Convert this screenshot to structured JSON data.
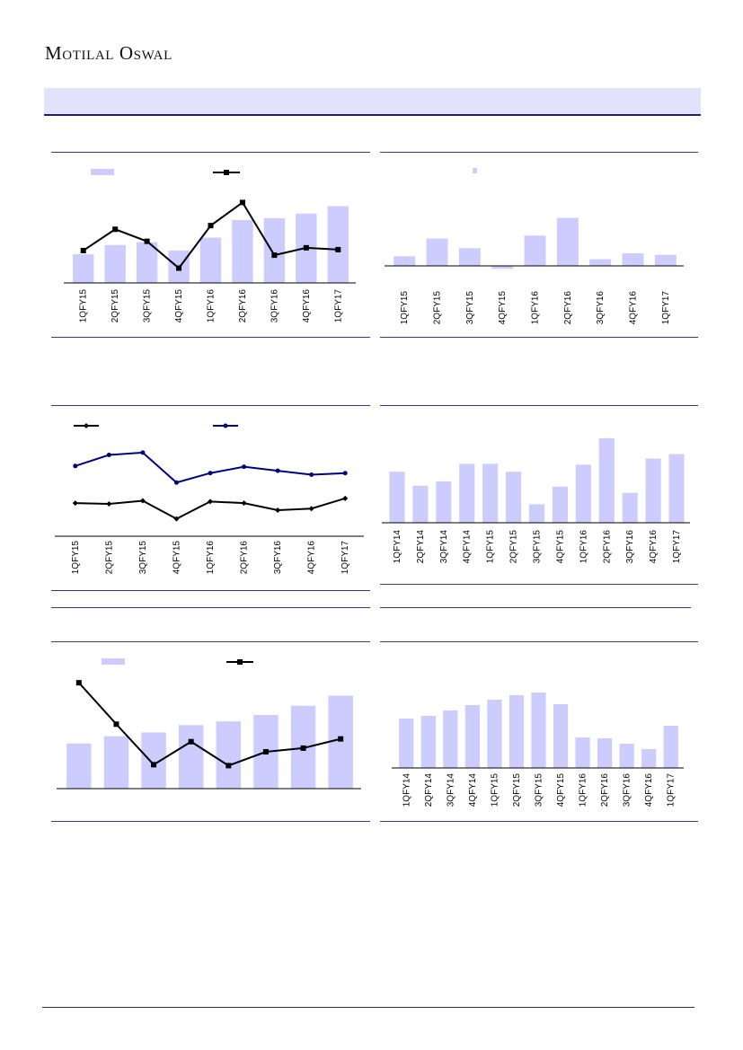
{
  "header": {
    "logo": "Motilal Oswal",
    "banner_title": ""
  },
  "colors": {
    "bar": "#ccccff",
    "line_black": "#000000",
    "line_navy": "#000080",
    "rule": "#3a3a8a"
  },
  "chart_data": [
    {
      "id": "c1",
      "type": "bar+line",
      "categories": [
        "1QFY15",
        "2QFY15",
        "3QFY15",
        "4QFY15",
        "1QFY16",
        "2QFY16",
        "3QFY16",
        "4QFY16",
        "1QFY17"
      ],
      "series": [
        {
          "kind": "bar",
          "values": [
            31,
            41,
            44,
            35,
            49,
            68,
            70,
            75,
            83
          ]
        },
        {
          "kind": "line",
          "marker": "square",
          "values": [
            35,
            58,
            45,
            16,
            62,
            87,
            30,
            38,
            36
          ]
        }
      ],
      "ylim": [
        0,
        100
      ]
    },
    {
      "id": "c2",
      "type": "bar",
      "categories": [
        "1QFY15",
        "2QFY15",
        "3QFY15",
        "4QFY15",
        "1QFY16",
        "2QFY16",
        "3QFY16",
        "4QFY16",
        "1QFY17"
      ],
      "values": [
        13,
        37,
        24,
        -4,
        41,
        65,
        9,
        17,
        15
      ],
      "ylim": [
        -15,
        90
      ]
    },
    {
      "id": "c3",
      "type": "line",
      "categories": [
        "1QFY15",
        "2QFY15",
        "3QFY15",
        "4QFY15",
        "1QFY16",
        "2QFY16",
        "3QFY16",
        "4QFY16",
        "1QFY17"
      ],
      "series": [
        {
          "marker": "diamond",
          "color": "#000000",
          "values": [
            42,
            41,
            45,
            22,
            44,
            42,
            33,
            35,
            48
          ]
        },
        {
          "marker": "circle",
          "color": "#000080",
          "values": [
            89,
            103,
            106,
            68,
            80,
            88,
            83,
            78,
            80
          ]
        }
      ],
      "ylim": [
        0,
        140
      ]
    },
    {
      "id": "c4",
      "type": "bar",
      "categories": [
        "1QFY14",
        "2QFY14",
        "3QFY14",
        "4QFY14",
        "1QFY15",
        "2QFY15",
        "3QFY15",
        "4QFY15",
        "1QFY16",
        "2QFY16",
        "3QFY16",
        "4QFY16",
        "1QFY17"
      ],
      "values": [
        58,
        42,
        47,
        67,
        67,
        58,
        21,
        41,
        66,
        96,
        34,
        73,
        78
      ],
      "ylim": [
        0,
        100
      ]
    },
    {
      "id": "c5",
      "type": "bar+line",
      "categories": [
        "",
        "",
        "",
        "",
        "",
        "",
        "",
        ""
      ],
      "series": [
        {
          "kind": "bar",
          "values": [
            49,
            57,
            61,
            69,
            73,
            80,
            90,
            101
          ]
        },
        {
          "kind": "line",
          "marker": "square",
          "values": [
            115,
            70,
            26,
            51,
            25,
            40,
            44,
            54
          ]
        }
      ],
      "ylim": [
        0,
        120
      ]
    },
    {
      "id": "c6",
      "type": "bar",
      "categories": [
        "1QFY14",
        "2QFY14",
        "3QFY14",
        "4QFY14",
        "1QFY15",
        "2QFY15",
        "3QFY15",
        "4QFY15",
        "1QFY16",
        "2QFY16",
        "3QFY16",
        "4QFY16",
        "1QFY17"
      ],
      "values": [
        55,
        58,
        64,
        70,
        76,
        81,
        84,
        71,
        34,
        33,
        27,
        21,
        47
      ],
      "ylim": [
        0,
        100
      ]
    }
  ]
}
